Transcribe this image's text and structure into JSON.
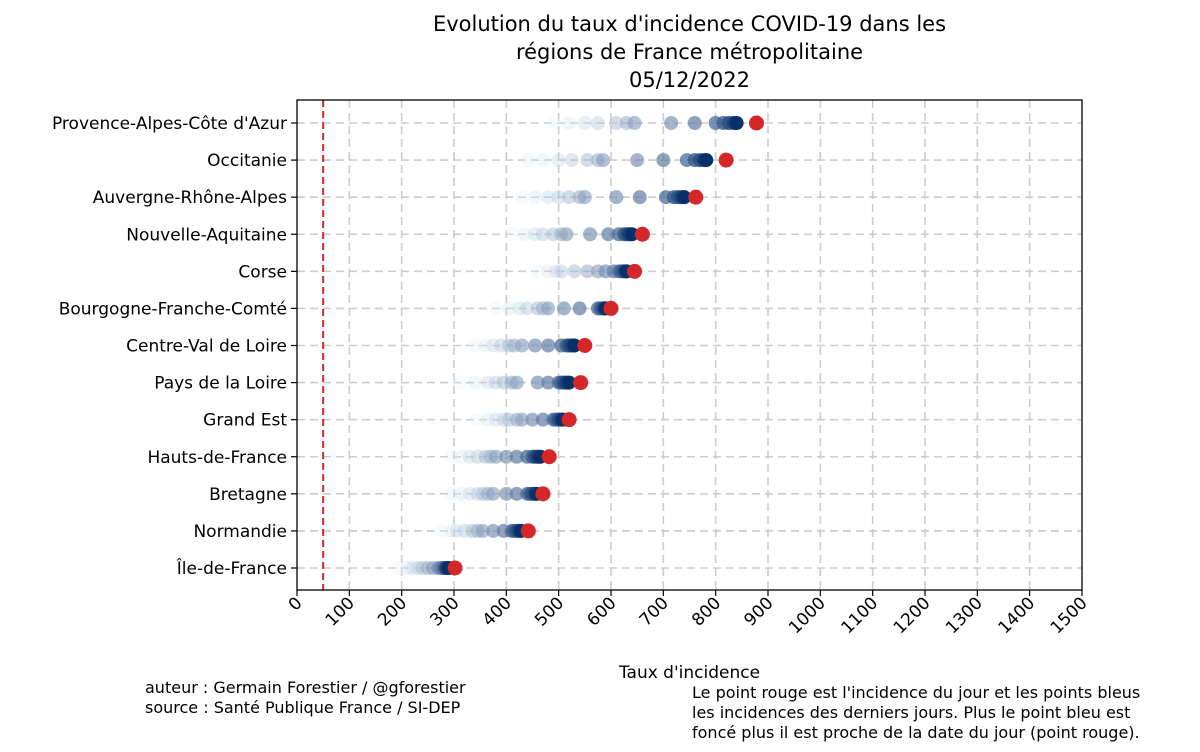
{
  "chart_data": {
    "type": "scatter",
    "title_lines": [
      "Evolution du taux d'incidence COVID-19 dans les",
      "régions de France métropolitaine",
      "05/12/2022"
    ],
    "xlabel": "Taux d'incidence",
    "ylabel": "",
    "xlim": [
      0,
      1500
    ],
    "xticks": [
      0,
      100,
      200,
      300,
      400,
      500,
      600,
      700,
      800,
      900,
      1000,
      1100,
      1200,
      1300,
      1400,
      1500
    ],
    "grid": true,
    "reference_line_x": 50,
    "colors": {
      "today": "#d62728",
      "past_dark": "#08306b",
      "past_light": "#deebf7",
      "ref_line": "#d62728",
      "grid": "#cccccc"
    },
    "regions": [
      {
        "name": "Provence-Alpes-Côte d'Azur",
        "history": [
          490,
          520,
          550,
          575,
          610,
          630,
          645,
          715,
          760,
          800,
          815,
          825,
          835,
          840
        ],
        "today": 878
      },
      {
        "name": "Occitanie",
        "history": [
          440,
          470,
          500,
          525,
          555,
          575,
          585,
          650,
          700,
          745,
          760,
          770,
          778,
          782
        ],
        "today": 820
      },
      {
        "name": "Auvergne-Rhône-Alpes",
        "history": [
          430,
          455,
          480,
          500,
          520,
          540,
          550,
          610,
          655,
          705,
          720,
          728,
          735,
          740
        ],
        "today": 762
      },
      {
        "name": "Nouvelle-Aquitaine",
        "history": [
          410,
          435,
          455,
          470,
          490,
          505,
          515,
          560,
          595,
          615,
          625,
          630,
          635,
          640
        ],
        "today": 660
      },
      {
        "name": "Corse",
        "history": [
          460,
          480,
          495,
          505,
          530,
          555,
          575,
          590,
          605,
          615,
          620,
          625,
          628,
          630
        ],
        "today": 645
      },
      {
        "name": "Bourgogne-Franche-Comté",
        "history": [
          380,
          405,
          425,
          440,
          460,
          470,
          480,
          510,
          540,
          575,
          580,
          585,
          588,
          590
        ],
        "today": 600
      },
      {
        "name": "Centre-Val de Loire",
        "history": [
          340,
          360,
          375,
          390,
          405,
          415,
          430,
          455,
          480,
          505,
          515,
          520,
          525,
          530
        ],
        "today": 550
      },
      {
        "name": "Pays de la Loire",
        "history": [
          310,
          340,
          365,
          380,
          395,
          410,
          420,
          460,
          480,
          500,
          505,
          510,
          515,
          520
        ],
        "today": 542
      },
      {
        "name": "Grand Est",
        "history": [
          345,
          365,
          380,
          395,
          405,
          420,
          430,
          450,
          470,
          490,
          495,
          500,
          505,
          508
        ],
        "today": 520
      },
      {
        "name": "Hauts-de-France",
        "history": [
          295,
          315,
          330,
          345,
          360,
          370,
          380,
          400,
          420,
          440,
          450,
          455,
          460,
          465
        ],
        "today": 482
      },
      {
        "name": "Bretagne",
        "history": [
          295,
          315,
          330,
          345,
          355,
          365,
          375,
          400,
          420,
          440,
          445,
          450,
          455,
          458
        ],
        "today": 470
      },
      {
        "name": "Normandie",
        "history": [
          275,
          295,
          305,
          320,
          335,
          345,
          355,
          375,
          395,
          410,
          415,
          420,
          425,
          428
        ],
        "today": 442
      },
      {
        "name": "Île-de-France",
        "history": [
          195,
          210,
          220,
          230,
          240,
          250,
          260,
          270,
          275,
          280,
          283,
          285,
          287,
          290
        ],
        "today": 302
      }
    ]
  },
  "footer": {
    "author_line1": "auteur : Germain Forestier / @gforestier",
    "author_line2": "source : Santé Publique France / SI-DEP",
    "note_line1": "Le point rouge est l'incidence du jour et les points bleus",
    "note_line2": "les incidences des derniers jours. Plus le point bleu est",
    "note_line3": "foncé plus il est proche de la date du jour (point rouge)."
  }
}
